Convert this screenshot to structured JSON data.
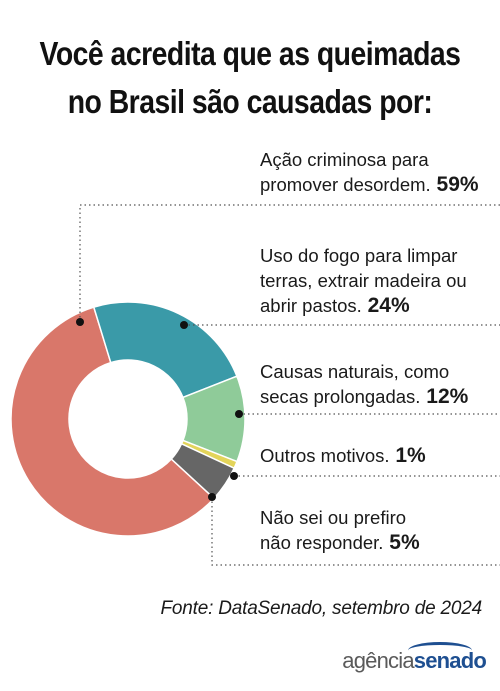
{
  "title": {
    "line1": "Você acredita que as queimadas",
    "line2": "no Brasil são causadas por:"
  },
  "chart_data": {
    "type": "pie",
    "style": "donut",
    "series": [
      {
        "label_lines": [
          "Ação criminosa para",
          "promover desordem."
        ],
        "value": 59,
        "display": "59%",
        "color": "#d9776a"
      },
      {
        "label_lines": [
          "Uso do fogo para limpar",
          "terras, extrair madeira ou",
          "abrir pastos."
        ],
        "value": 24,
        "display": "24%",
        "color": "#3a9aa8"
      },
      {
        "label_lines": [
          "Causas naturais, como",
          "secas prolongadas."
        ],
        "value": 12,
        "display": "12%",
        "color": "#8fcb99"
      },
      {
        "label_lines": [
          "Outros motivos."
        ],
        "value": 1,
        "display": "1%",
        "color": "#e3d45a"
      },
      {
        "label_lines": [
          "Não sei ou prefiro",
          "não responder."
        ],
        "value": 5,
        "display": "5%",
        "color": "#666666"
      }
    ]
  },
  "source": "Fonte: DataSenado, setembro de 2024",
  "logo": {
    "part1": "agência",
    "part2": "senado"
  },
  "colors": {
    "dots": "#111111",
    "leader": "#555555"
  }
}
